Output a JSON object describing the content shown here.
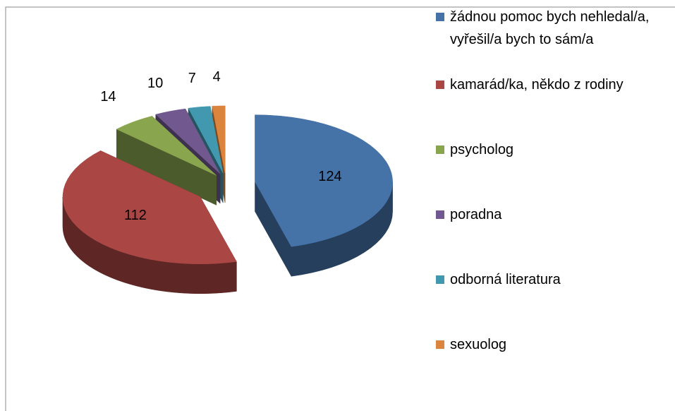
{
  "chart_data": {
    "type": "pie",
    "categories": [
      "žádnou pomoc bych nehledal/a, vyřešil/a bych to sám/a",
      "kamarád/ka, někdo z rodiny",
      "psycholog",
      "poradna",
      "odborná literatura",
      "sexuolog"
    ],
    "values": [
      124,
      112,
      14,
      10,
      7,
      4
    ],
    "colors": [
      "#4572a7",
      "#aa4643",
      "#89a54e",
      "#71588f",
      "#4198af",
      "#db843d"
    ],
    "legend": "right"
  }
}
